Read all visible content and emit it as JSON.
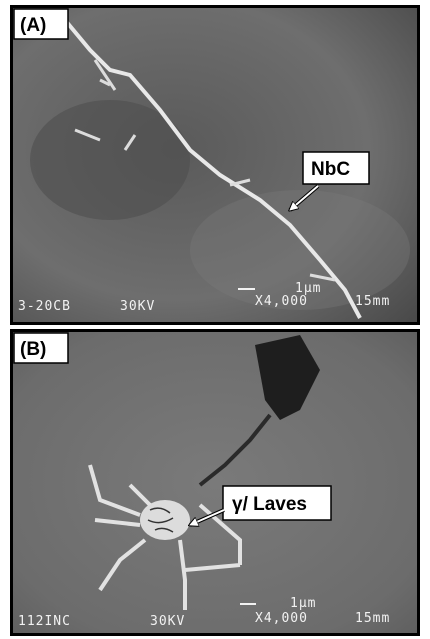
{
  "panels": [
    {
      "label": "(A)",
      "annotation": "NbC",
      "info": {
        "sample": "3-20CB",
        "voltage": "30KV",
        "scale": "1μm",
        "magnification": "X4,000",
        "working_distance": "15mm"
      }
    },
    {
      "label": "(B)",
      "annotation": "γ/ Laves",
      "info": {
        "sample": "112INC",
        "voltage": "30KV",
        "scale": "1μm",
        "magnification": "X4,000",
        "working_distance": "15mm"
      }
    }
  ]
}
